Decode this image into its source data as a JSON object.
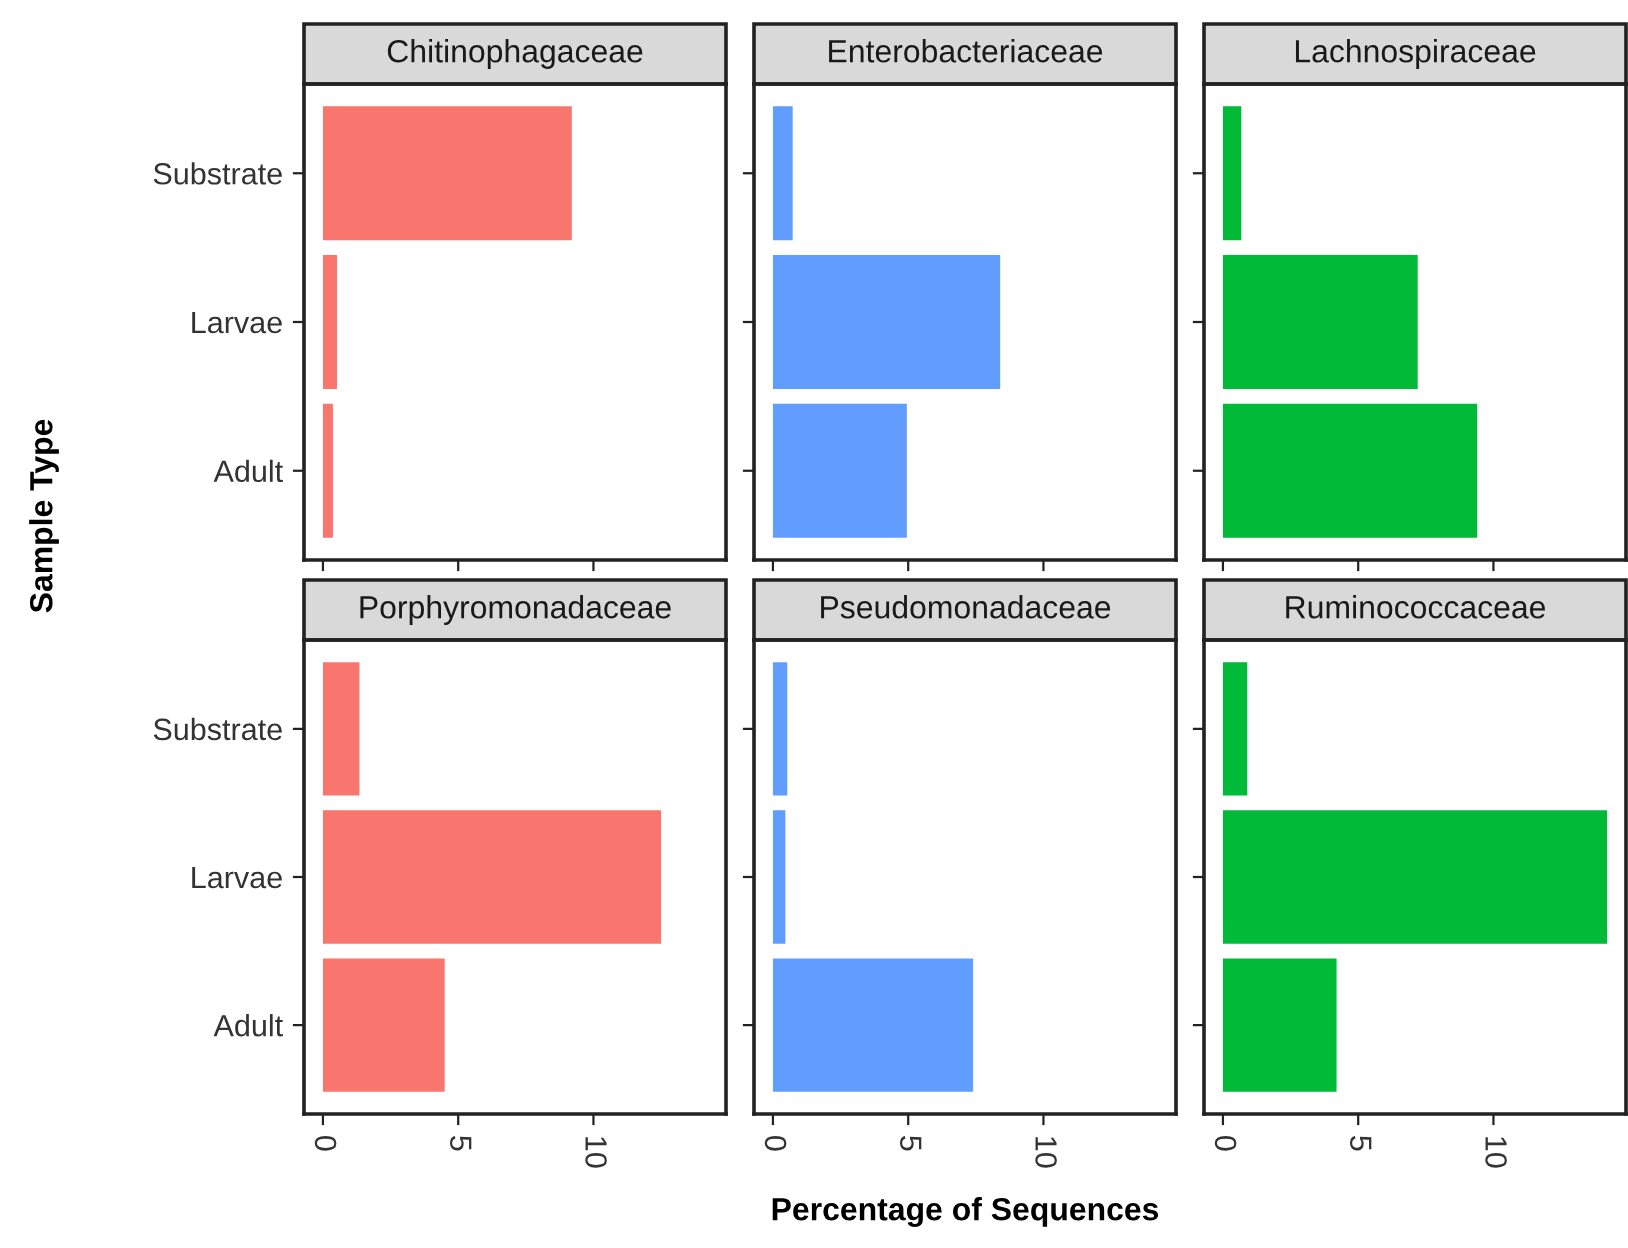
{
  "chart_data": [
    {
      "type": "bar",
      "orientation": "horizontal",
      "title": "Chitinophagaceae",
      "ylabel": "Sample Type",
      "categories": [
        "Substrate",
        "Larvae",
        "Adult"
      ],
      "values": [
        9.2,
        0.52,
        0.37
      ],
      "color": "#f8766d",
      "xlim": [
        -0.7,
        14.9
      ],
      "xticks": [
        0,
        5,
        10
      ],
      "grid": false,
      "legend": false,
      "tick_labels": "y"
    },
    {
      "type": "bar",
      "orientation": "horizontal",
      "title": "Enterobacteriaceae",
      "categories": [
        null,
        null,
        null
      ],
      "values": [
        0.73,
        8.4,
        4.95
      ],
      "color": "#619cff",
      "xlim": [
        -0.7,
        14.9
      ],
      "xticks": [
        0,
        5,
        10
      ],
      "grid": false,
      "legend": false,
      "tick_labels": false
    },
    {
      "type": "bar",
      "orientation": "horizontal",
      "title": "Lachnospiraceae",
      "categories": [
        null,
        null,
        null
      ],
      "values": [
        0.68,
        7.2,
        9.4
      ],
      "color": "#00ba38",
      "xlim": [
        -0.7,
        14.9
      ],
      "xticks": [
        0,
        5,
        10
      ],
      "grid": false,
      "legend": false,
      "tick_labels": false
    },
    {
      "type": "bar",
      "orientation": "horizontal",
      "title": "Porphyromonadaceae",
      "categories": [
        "Substrate",
        "Larvae",
        "Adult"
      ],
      "values": [
        1.35,
        12.5,
        4.5
      ],
      "color": "#f8766d",
      "xlim": [
        -0.7,
        14.9
      ],
      "xticks": [
        0,
        5,
        10
      ],
      "grid": false,
      "legend": false
    },
    {
      "type": "bar",
      "orientation": "horizontal",
      "title": "Pseudomonadaceae",
      "xlabel": "Percentage of Sequences",
      "categories": [
        null,
        null,
        null
      ],
      "values": [
        0.53,
        0.46,
        7.4
      ],
      "color": "#619cff",
      "xlim": [
        -0.7,
        14.9
      ],
      "xticks": [
        0,
        5,
        10
      ],
      "grid": false,
      "legend": false,
      "tick_labels": "x"
    },
    {
      "type": "bar",
      "orientation": "horizontal",
      "title": "Ruminococcaceae",
      "categories": [
        null,
        null,
        null
      ],
      "values": [
        0.9,
        14.2,
        4.2
      ],
      "color": "#00ba38",
      "xlim": [
        -0.7,
        14.9
      ],
      "xticks": [
        0,
        5,
        10
      ],
      "grid": false,
      "legend": false,
      "tick_labels": "x"
    }
  ]
}
